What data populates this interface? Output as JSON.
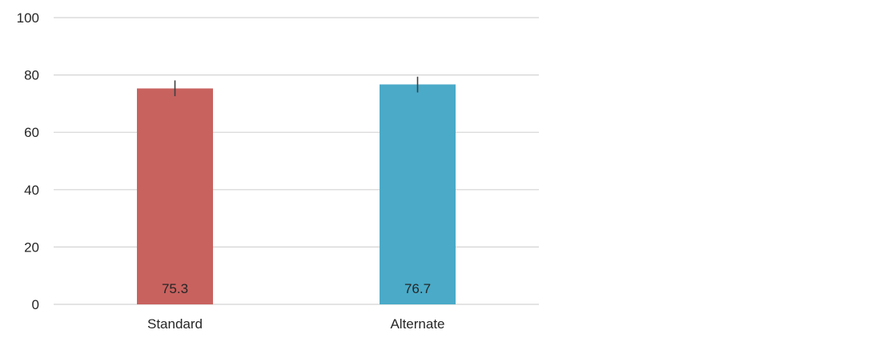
{
  "chart_data": {
    "type": "bar",
    "title": "",
    "xlabel": "",
    "ylabel": "",
    "categories": [
      "Standard",
      "Alternate"
    ],
    "values": [
      75.3,
      76.7
    ],
    "value_labels": [
      "75.3",
      "76.7"
    ],
    "error_bars": [
      {
        "low": 72.6,
        "high": 78.1
      },
      {
        "low": 73.9,
        "high": 79.4
      }
    ],
    "bar_colors": [
      "#c8625f",
      "#4aaac8"
    ],
    "ylim": [
      0,
      100
    ],
    "yticks": [
      0,
      20,
      40,
      60,
      80,
      100
    ],
    "ytick_labels": [
      "0",
      "20",
      "40",
      "60",
      "80",
      "100"
    ],
    "grid": true,
    "legend": "none"
  }
}
